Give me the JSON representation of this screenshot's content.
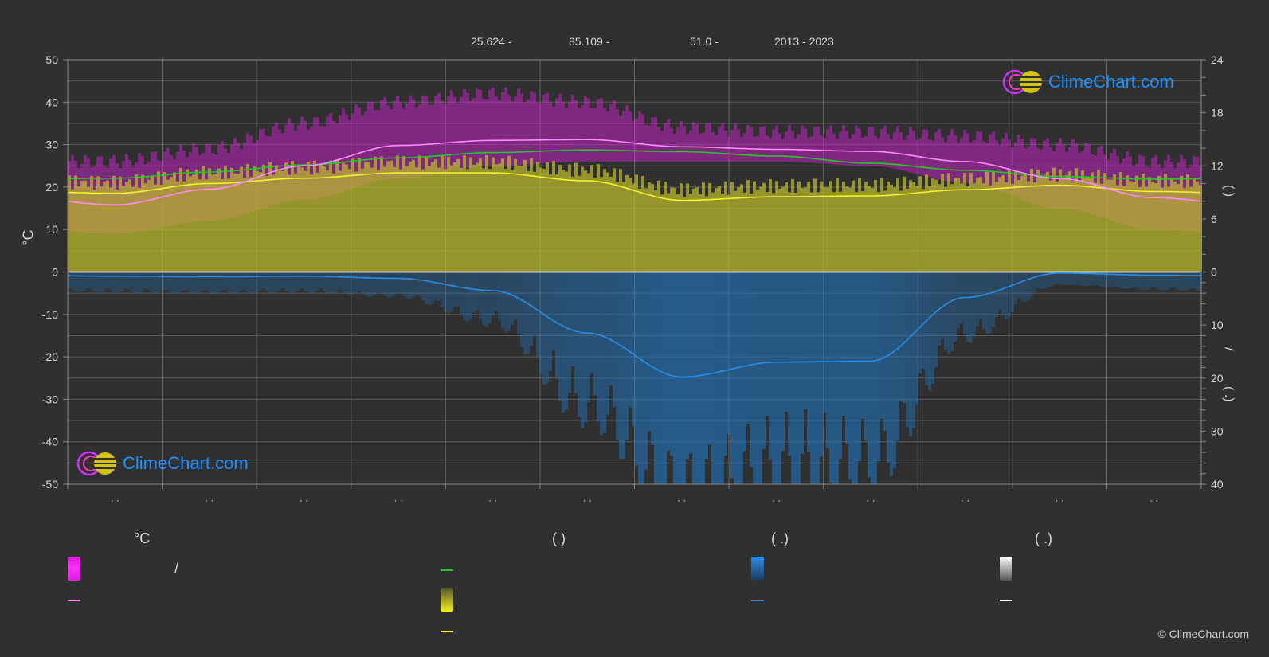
{
  "header": {
    "lat": "25.624 -",
    "lon": "85.109 -",
    "elevation": "51.0 -",
    "period": "2013 - 2023"
  },
  "axes": {
    "left_unit": "°C",
    "right_upper_label": "(  )",
    "right_lower_label": "(  .)",
    "right_mid_slash": "/",
    "left_ticks": [
      "50",
      "40",
      "30",
      "20",
      "10",
      "0",
      "-10",
      "-20",
      "-30",
      "-40",
      "-50"
    ],
    "right_upper_ticks": [
      "24",
      "18",
      "12",
      "6",
      "0"
    ],
    "right_lower_ticks": [
      "10",
      "20",
      "30",
      "40"
    ],
    "month_label": "· ·"
  },
  "logo": {
    "text": "ClimeChart.com"
  },
  "legend": {
    "col1_head": "°C",
    "col1_slash": "/",
    "col2_head": "(          )",
    "col3_head": "(   .)",
    "col4_head": "(   .)"
  },
  "copyright": "© ClimeChart.com",
  "colors": {
    "background": "#303030",
    "temp_band": "#e020e0",
    "temp_mean": "#ff88ff",
    "daylight": "#22cc22",
    "sunshine_band": "#bdbd2a",
    "sunshine_mean": "#f2f230",
    "precip_band": "#1f77c4",
    "precip_mean": "#2a8ee8",
    "snow": "#ffffff"
  },
  "chart_data": {
    "type": "line",
    "months": 12,
    "ylim_left": [
      -50,
      50
    ],
    "ylim_right_hours": [
      0,
      24
    ],
    "ylim_right_precip_mm": [
      0,
      40
    ],
    "grid": true,
    "series": [
      {
        "key": "daylight_hours",
        "values": [
          10.6,
          11.3,
          12.1,
          12.9,
          13.5,
          13.8,
          13.6,
          13.1,
          12.3,
          11.5,
          10.8,
          10.5
        ]
      },
      {
        "key": "sunshine_hours",
        "values": [
          8.9,
          10.0,
          10.6,
          11.2,
          11.2,
          10.3,
          8.1,
          8.5,
          8.6,
          9.3,
          9.8,
          9.1
        ]
      },
      {
        "key": "mean_temp_c",
        "values": [
          15.8,
          19.5,
          25.0,
          29.8,
          31.0,
          31.2,
          29.5,
          28.9,
          28.4,
          26.0,
          22.0,
          17.5
        ]
      },
      {
        "key": "max_temp_c",
        "values": [
          26,
          29,
          35,
          40,
          42,
          40,
          34,
          33,
          33,
          32,
          30,
          26
        ]
      },
      {
        "key": "min_temp_c",
        "values": [
          9,
          12,
          17,
          22,
          25,
          26,
          26,
          26,
          25,
          21,
          15,
          10
        ]
      },
      {
        "key": "precip_mm",
        "values": [
          0.8,
          0.9,
          0.8,
          1.2,
          3.5,
          11.5,
          19.8,
          17.0,
          16.8,
          4.8,
          0.2,
          0.6
        ]
      }
    ]
  }
}
